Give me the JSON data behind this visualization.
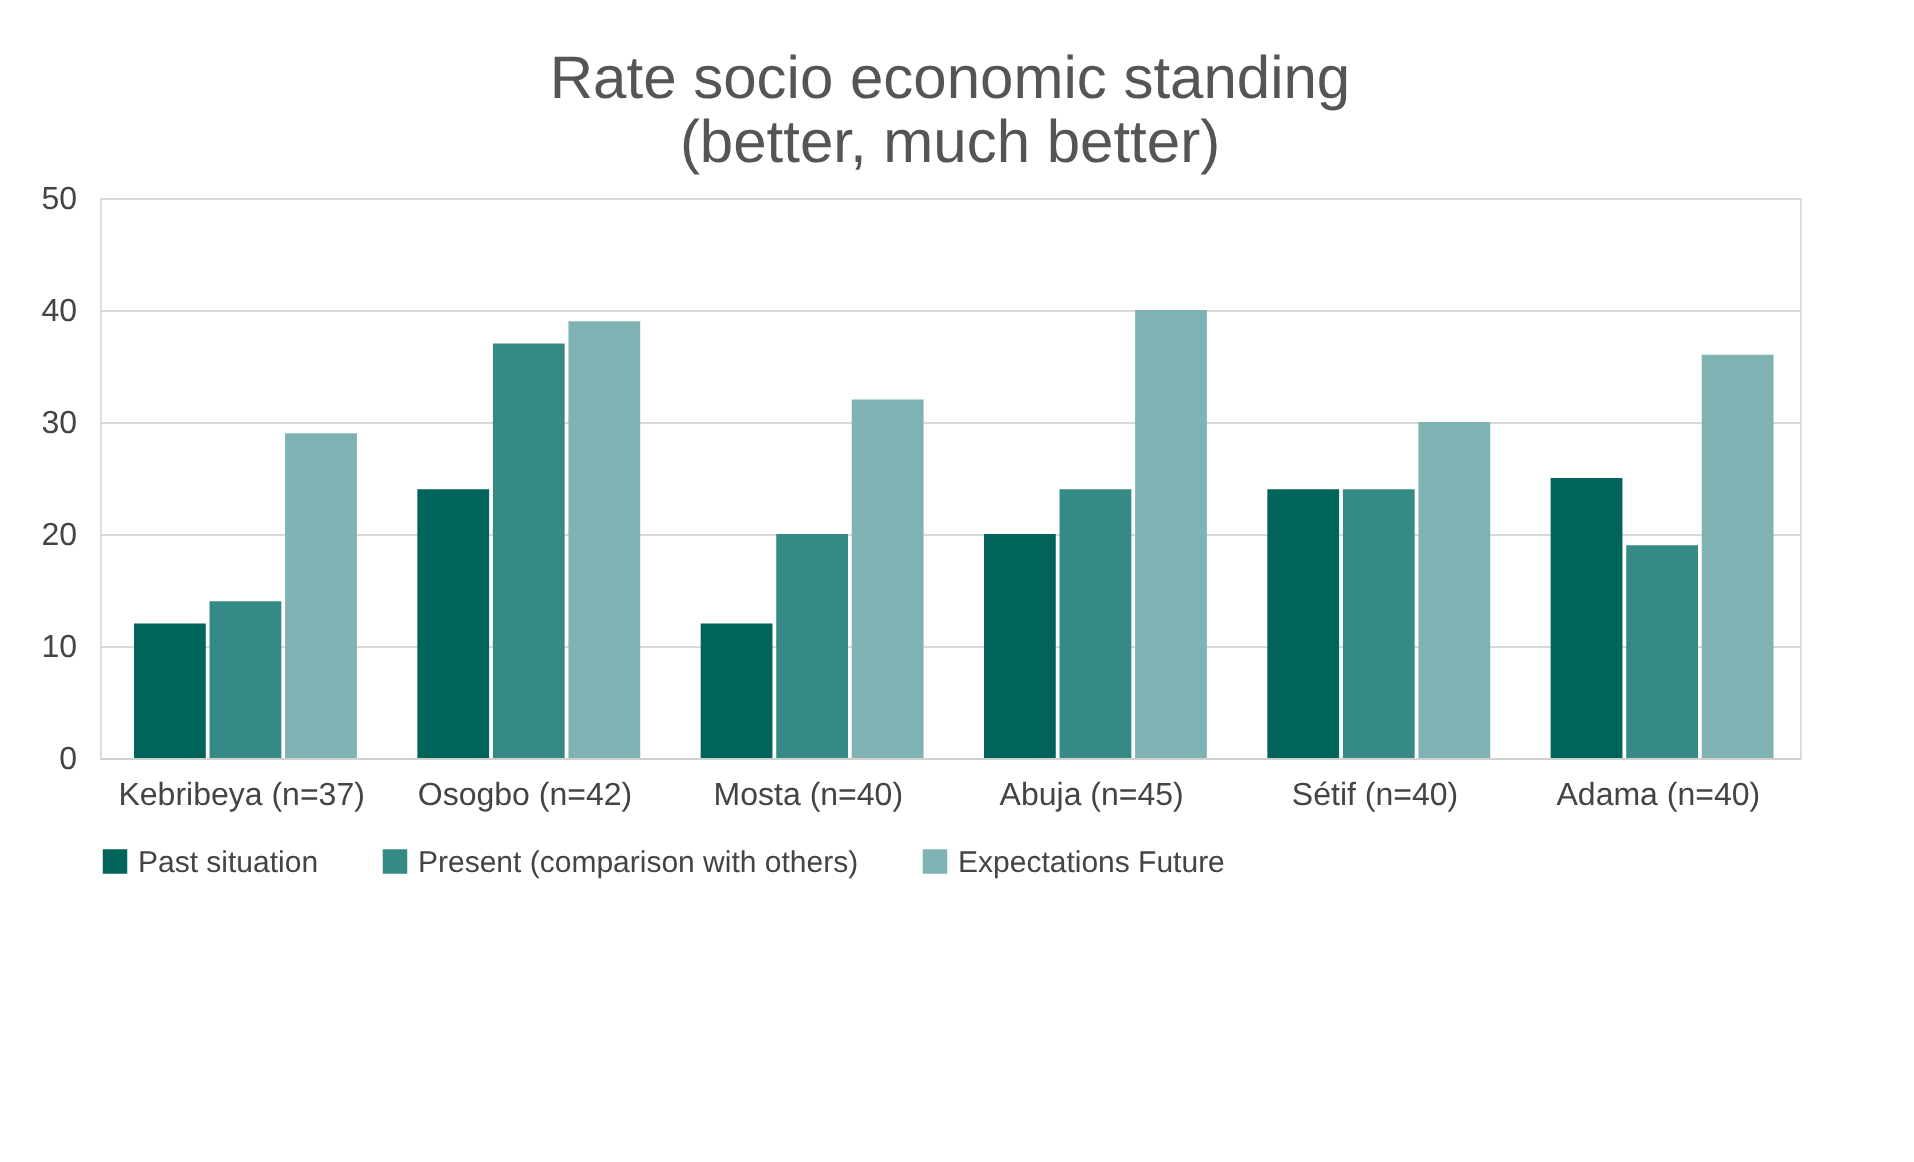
{
  "chart_data": {
    "type": "bar",
    "title": "Rate socio economic standing\n(better, much better)",
    "categories": [
      "Kebribeya (n=37)",
      "Osogbo (n=42)",
      "Mosta (n=40)",
      "Abuja (n=45)",
      "Sétif (n=40)",
      "Adama (n=40)"
    ],
    "series": [
      {
        "name": "Past situation",
        "color": "#00645a",
        "values": [
          12,
          24,
          12,
          20,
          24,
          25
        ]
      },
      {
        "name": "Present (comparison with others)",
        "color": "#358a85",
        "values": [
          14,
          37,
          20,
          24,
          24,
          19
        ]
      },
      {
        "name": "Expectations Future",
        "color": "#7fb3b3",
        "values": [
          29,
          39,
          32,
          40,
          30,
          36
        ]
      }
    ],
    "ylim": [
      0,
      50
    ],
    "yticks": [
      0,
      10,
      20,
      30,
      40,
      50
    ],
    "grid": "y",
    "legend": "bottom"
  }
}
